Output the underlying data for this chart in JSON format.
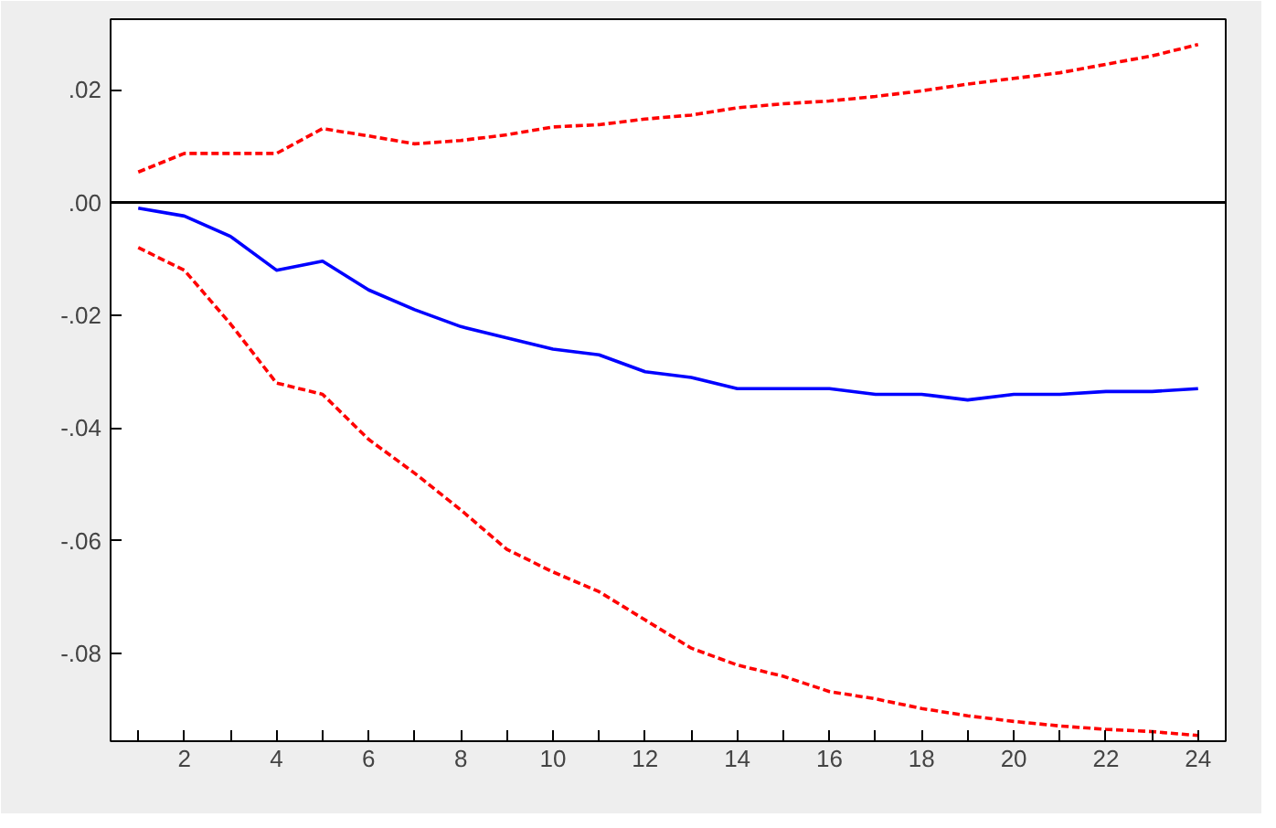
{
  "chart_data": {
    "type": "line",
    "x": [
      1,
      2,
      3,
      4,
      5,
      6,
      7,
      8,
      9,
      10,
      11,
      12,
      13,
      14,
      15,
      16,
      17,
      18,
      19,
      20,
      21,
      22,
      23,
      24
    ],
    "series": [
      {
        "color": "#0000ff",
        "line_style": "solid",
        "values": [
          -0.001,
          -0.0024,
          -0.006,
          -0.012,
          -0.0104,
          -0.0155,
          -0.019,
          -0.022,
          -0.024,
          -0.026,
          -0.027,
          -0.03,
          -0.031,
          -0.033,
          -0.033,
          -0.033,
          -0.034,
          -0.034,
          -0.035,
          -0.034,
          -0.034,
          -0.0335,
          -0.0335,
          -0.033
        ]
      },
      {
        "color": "#ff0000",
        "line_style": "dashed",
        "values": [
          0.0054,
          0.0087,
          0.0087,
          0.0087,
          0.0131,
          0.0118,
          0.0104,
          0.011,
          0.012,
          0.0134,
          0.0138,
          0.0148,
          0.0155,
          0.0168,
          0.0175,
          0.018,
          0.0188,
          0.0198,
          0.021,
          0.022,
          0.023,
          0.0245,
          0.026,
          0.028
        ]
      },
      {
        "color": "#ff0000",
        "line_style": "dashed",
        "values": [
          -0.008,
          -0.012,
          -0.0215,
          -0.032,
          -0.034,
          -0.042,
          -0.048,
          -0.0545,
          -0.0615,
          -0.0655,
          -0.069,
          -0.074,
          -0.079,
          -0.082,
          -0.084,
          -0.0867,
          -0.088,
          -0.0897,
          -0.091,
          -0.092,
          -0.0928,
          -0.0934,
          -0.0938,
          -0.0945
        ]
      }
    ],
    "xlim": [
      0.4,
      24.6
    ],
    "xticks": [
      {
        "value": 1,
        "label": null
      },
      2,
      {
        "value": 3,
        "label": null
      },
      4,
      {
        "value": 5,
        "label": null
      },
      6,
      {
        "value": 7,
        "label": null
      },
      8,
      {
        "value": 9,
        "label": null
      },
      10,
      {
        "value": 11,
        "label": null
      },
      12,
      {
        "value": 13,
        "label": null
      },
      14,
      {
        "value": 15,
        "label": null
      },
      16,
      {
        "value": 17,
        "label": null
      },
      18,
      {
        "value": 19,
        "label": null
      },
      20,
      {
        "value": 21,
        "label": null
      },
      22,
      {
        "value": 23,
        "label": null
      },
      24
    ],
    "ylim": [
      -0.0955,
      0.0325
    ],
    "yticks": [
      {
        "value": 0.02,
        "label": ".02"
      },
      {
        "value": 0,
        "label": ".00"
      },
      {
        "value": -0.02,
        "label": "-.02"
      },
      {
        "value": -0.04,
        "label": "-.04"
      },
      {
        "value": -0.06,
        "label": "-.06"
      },
      {
        "value": -0.08,
        "label": "-.08"
      }
    ],
    "ref_lines": [
      {
        "axis": "y",
        "value": 0,
        "color": "#000000"
      }
    ],
    "grid": false,
    "marker": "none"
  }
}
